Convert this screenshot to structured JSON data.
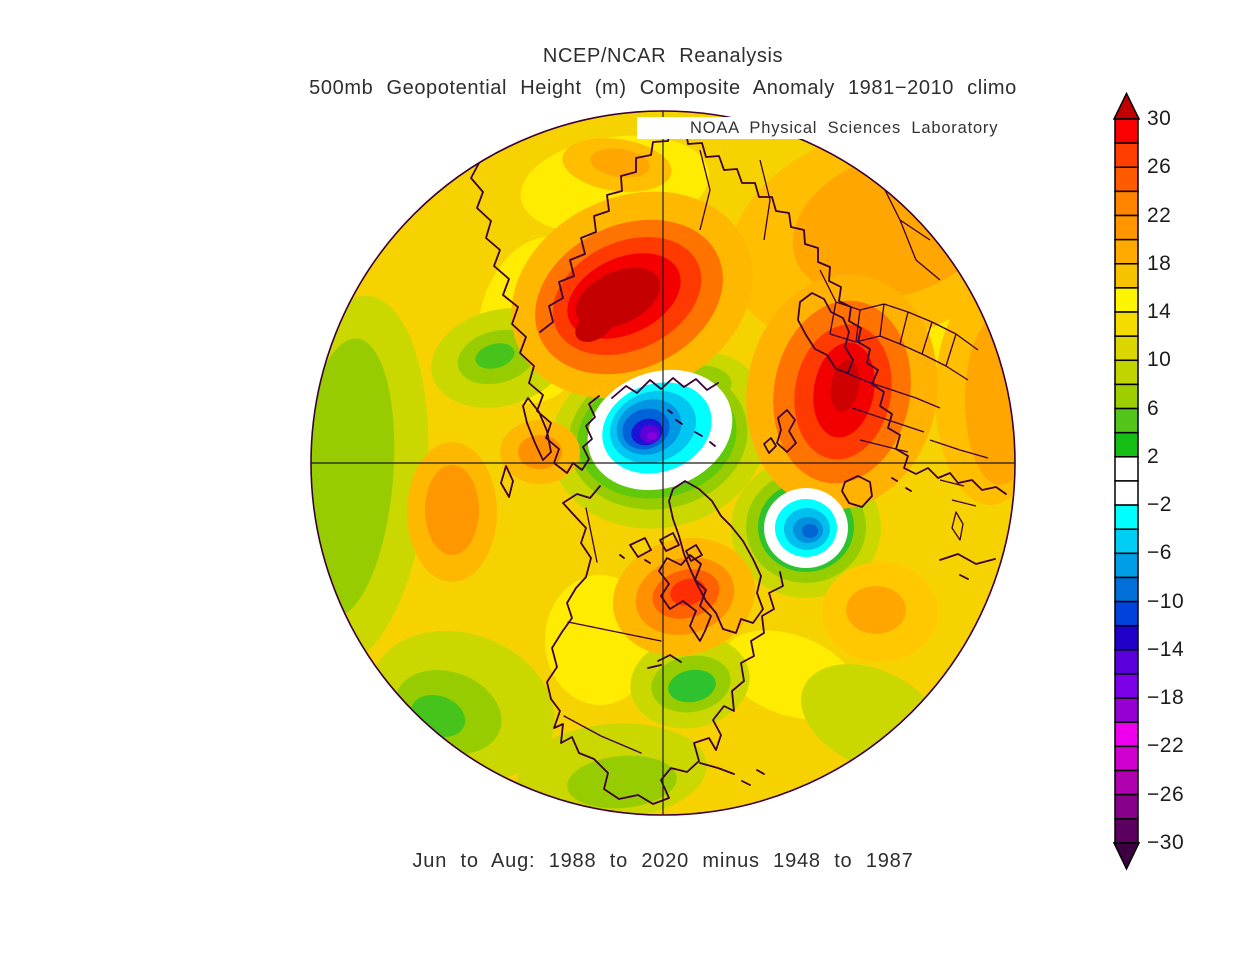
{
  "header": {
    "title_line1": "NCEP/NCAR Reanalysis",
    "title_line2": "500mb Geopotential Height (m) Composite Anomaly 1981−2010 climo",
    "watermark": "NOAA Physical Sciences Laboratory"
  },
  "caption": "Jun to Aug: 1988 to 2020 minus 1948 to 1987",
  "colorbar": {
    "units": "m",
    "max": 30,
    "min": -30,
    "cell_step": 2,
    "label_step": 4,
    "tick_labels": [
      "30",
      "26",
      "22",
      "18",
      "14",
      "10",
      "6",
      "2",
      "−2",
      "−6",
      "−10",
      "−14",
      "−18",
      "−22",
      "−26",
      "−30"
    ],
    "cell_colors_top_to_bottom": [
      "#FA0000",
      "#FF3E00",
      "#FF5A00",
      "#FF8400",
      "#FF9600",
      "#FFAA00",
      "#F7C300",
      "#FEF600",
      "#F5DC00",
      "#DCD600",
      "#C2D400",
      "#9CCE00",
      "#52C41A",
      "#14BE14",
      "#FFFFFF",
      "#FFFFFF",
      "#00FFFF",
      "#00CEF4",
      "#009EE6",
      "#0070D8",
      "#0042DC",
      "#2000C8",
      "#5A00DC",
      "#7C00E8",
      "#9600D2",
      "#EE00EE",
      "#D000D0",
      "#B000B0",
      "#86008C",
      "#5C0060"
    ],
    "top_arrow_color": "#C00000",
    "bottom_arrow_color": "#3D0040"
  },
  "map": {
    "type": "filled-contour composite anomaly map",
    "projection": "Northern Hemisphere polar stereographic, pole-centered crosshair",
    "coastline_color": "#3B0036",
    "background_anomaly_color": "#F6D300",
    "notable_centers": [
      {
        "sign": "positive",
        "approx_peak_m": 30,
        "region": "upper center (dark red core)"
      },
      {
        "sign": "positive",
        "approx_peak_m": 26,
        "region": "right side (red core with borders)"
      },
      {
        "sign": "positive",
        "approx_peak_m": 24,
        "region": "below center (orange-red core)"
      },
      {
        "sign": "negative",
        "approx_peak_m": -16,
        "region": "map center near pole (violet core, white ring)"
      },
      {
        "sign": "negative",
        "approx_peak_m": -10,
        "region": "right of center (blue core, white ring)"
      }
    ]
  }
}
